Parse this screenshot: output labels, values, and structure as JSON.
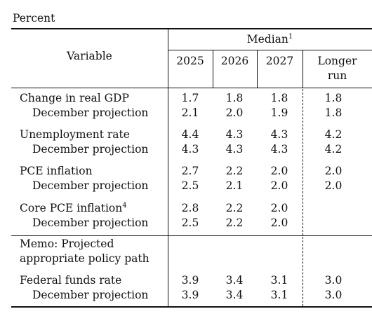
{
  "unit_label": "Percent",
  "header": {
    "variable": "Variable",
    "median": "Median",
    "median_note": "1",
    "years": [
      "2025",
      "2026",
      "2027"
    ],
    "longer_run_line1": "Longer",
    "longer_run_line2": "run"
  },
  "rows": [
    {
      "label": "Change in real GDP",
      "values": [
        "1.7",
        "1.8",
        "1.8",
        "1.8"
      ]
    },
    {
      "label": "December projection",
      "values": [
        "2.1",
        "2.0",
        "1.9",
        "1.8"
      ]
    },
    {
      "label": "Unemployment rate",
      "values": [
        "4.4",
        "4.3",
        "4.3",
        "4.2"
      ]
    },
    {
      "label": "December projection",
      "values": [
        "4.3",
        "4.3",
        "4.3",
        "4.2"
      ]
    },
    {
      "label": "PCE inflation",
      "values": [
        "2.7",
        "2.2",
        "2.0",
        "2.0"
      ]
    },
    {
      "label": "December projection",
      "values": [
        "2.5",
        "2.1",
        "2.0",
        "2.0"
      ]
    },
    {
      "label": "Core PCE inflation",
      "note": "4",
      "values": [
        "2.8",
        "2.2",
        "2.0",
        ""
      ]
    },
    {
      "label": "December projection",
      "values": [
        "2.5",
        "2.2",
        "2.0",
        ""
      ]
    }
  ],
  "memo": {
    "line1": "Memo: Projected",
    "line2": "appropriate policy path"
  },
  "memo_rows": [
    {
      "label": "Federal funds rate",
      "values": [
        "3.9",
        "3.4",
        "3.1",
        "3.0"
      ]
    },
    {
      "label": "December projection",
      "values": [
        "3.9",
        "3.4",
        "3.1",
        "3.0"
      ]
    }
  ]
}
